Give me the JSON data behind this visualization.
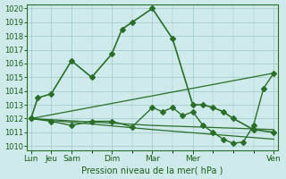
{
  "background_color": "#ceeaea",
  "grid_color": "#9ec8c8",
  "line_color": "#2a6e2a",
  "marker_color": "#2a6e2a",
  "xlabel": "Pression niveau de la mer( hPa )",
  "ylim": [
    1010,
    1020
  ],
  "yticks": [
    1010,
    1011,
    1012,
    1013,
    1014,
    1015,
    1016,
    1017,
    1018,
    1019,
    1020
  ],
  "xtick_positions": [
    0,
    1,
    2,
    4,
    6,
    8,
    12
  ],
  "xtick_labels": [
    "Lun",
    "Jeu",
    "Sam",
    "Dim",
    "Mar",
    "Mer",
    "Ven"
  ],
  "series": [
    {
      "x": [
        0,
        0.33,
        1,
        2,
        3,
        4,
        4.5,
        5,
        6,
        7,
        8,
        8.5,
        9,
        9.5,
        10,
        11,
        12
      ],
      "y": [
        1012,
        1013.5,
        1013.8,
        1016.2,
        1015.0,
        1016.7,
        1018.5,
        1019.0,
        1020.0,
        1017.8,
        1013.0,
        1013.0,
        1012.8,
        1012.5,
        1012.0,
        1011.2,
        1011.0
      ],
      "marker": "D",
      "markersize": 3,
      "lw": 1.2
    },
    {
      "x": [
        0,
        1,
        2,
        3,
        4,
        5,
        6,
        6.5,
        7,
        7.5,
        8,
        8.5,
        9,
        9.5,
        10,
        10.5,
        11,
        11.5,
        12
      ],
      "y": [
        1012,
        1011.8,
        1011.5,
        1011.8,
        1011.8,
        1011.4,
        1012.8,
        1012.5,
        1012.8,
        1012.2,
        1012.5,
        1011.5,
        1011.0,
        1010.5,
        1010.2,
        1010.3,
        1011.5,
        1014.2,
        1015.3
      ],
      "marker": "D",
      "markersize": 3,
      "lw": 1.0
    },
    {
      "x": [
        0,
        6,
        12
      ],
      "y": [
        1012.0,
        1011.5,
        1011.2
      ],
      "marker": null,
      "markersize": 0,
      "lw": 0.9
    },
    {
      "x": [
        0,
        12
      ],
      "y": [
        1012.0,
        1015.3
      ],
      "marker": null,
      "markersize": 0,
      "lw": 0.9
    },
    {
      "x": [
        0,
        6,
        12
      ],
      "y": [
        1012.0,
        1011.2,
        1010.5
      ],
      "marker": null,
      "markersize": 0,
      "lw": 0.9
    }
  ]
}
